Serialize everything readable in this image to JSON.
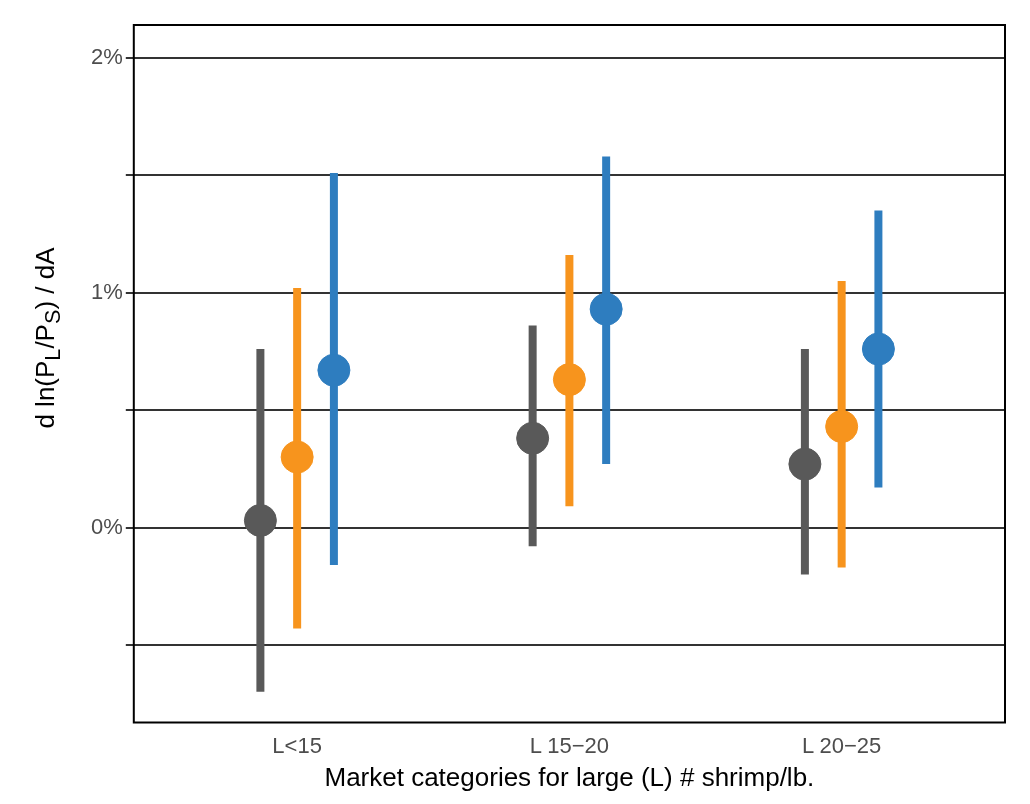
{
  "chart_data": {
    "type": "scatter",
    "xlabel": "Market categories for large (L) # shrimp/lb.",
    "ylabel": "d ln(P$_{L}$/P$_{S}$) / dA",
    "categories": [
      "L<15",
      "L 15−20",
      "L 20−25"
    ],
    "series": [
      {
        "color": "#595959",
        "values": [
          0.03,
          0.38,
          0.27
        ],
        "errors": [
          [
            -0.7,
            0.76
          ],
          [
            -0.08,
            0.86
          ],
          [
            -0.2,
            0.76
          ]
        ]
      },
      {
        "color": "#f7941d",
        "values": [
          0.3,
          0.63,
          0.43
        ],
        "errors": [
          [
            -0.43,
            1.02
          ],
          [
            0.09,
            1.16
          ],
          [
            -0.17,
            1.05
          ]
        ]
      },
      {
        "color": "#2e7dbf",
        "values": [
          0.67,
          0.93,
          0.76
        ],
        "errors": [
          [
            -0.16,
            1.51
          ],
          [
            0.27,
            1.58
          ],
          [
            0.17,
            1.35
          ]
        ]
      }
    ],
    "ylim": [
      -0.83,
      2.14
    ],
    "yticks": [
      {
        "value": -0.5,
        "label": null
      },
      {
        "value": 0,
        "label": "0%"
      },
      {
        "value": 0.5,
        "label": null
      },
      {
        "value": 1,
        "label": "1%"
      },
      {
        "value": 1.5,
        "label": null
      },
      {
        "value": 2,
        "label": "2%"
      }
    ],
    "grid": "y",
    "marker": "circle"
  }
}
